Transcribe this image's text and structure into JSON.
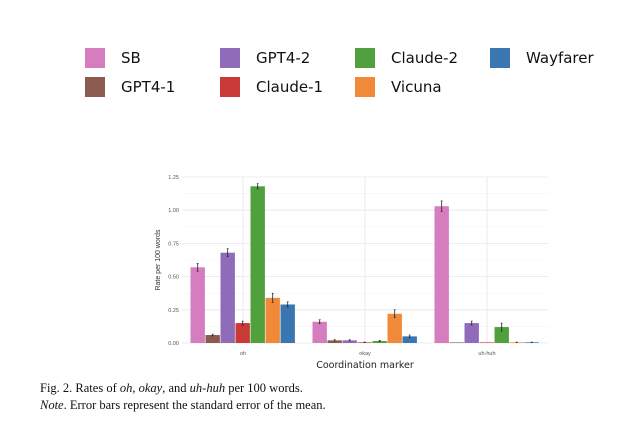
{
  "chart_data": {
    "type": "bar",
    "title": "",
    "xlabel": "Coordination marker",
    "ylabel": "Rate per 100 words",
    "ylim": [
      0,
      1.25
    ],
    "yticks": [
      "0.00",
      "0.25",
      "0.50",
      "0.75",
      "1.00",
      "1.25"
    ],
    "grid": true,
    "legend_position": "top",
    "categories": [
      "oh",
      "okay",
      "uh-huh"
    ],
    "series": [
      {
        "name": "SB",
        "color": "#d57dbe",
        "values": [
          0.57,
          0.16,
          1.03
        ],
        "errors": [
          0.03,
          0.015,
          0.04
        ]
      },
      {
        "name": "GPT4-1",
        "color": "#8c5b4f",
        "values": [
          0.06,
          0.02,
          0.0
        ],
        "errors": [
          0.007,
          0.005,
          0.0
        ]
      },
      {
        "name": "GPT4-2",
        "color": "#8f6bb9",
        "values": [
          0.68,
          0.02,
          0.15
        ],
        "errors": [
          0.03,
          0.005,
          0.015
        ]
      },
      {
        "name": "Claude-1",
        "color": "#c93a36",
        "values": [
          0.15,
          0.005,
          0.0
        ],
        "errors": [
          0.015,
          0.002,
          0.0
        ]
      },
      {
        "name": "Claude-2",
        "color": "#50a03e",
        "values": [
          1.18,
          0.015,
          0.12
        ],
        "errors": [
          0.02,
          0.005,
          0.03
        ]
      },
      {
        "name": "Vicuna",
        "color": "#f08a3a",
        "values": [
          0.34,
          0.22,
          0.005
        ],
        "errors": [
          0.035,
          0.03,
          0.002
        ]
      },
      {
        "name": "Wayfarer",
        "color": "#3a76b0",
        "values": [
          0.29,
          0.05,
          0.005
        ],
        "errors": [
          0.02,
          0.01,
          0.002
        ]
      }
    ]
  },
  "caption": {
    "line1_prefix": "Fig. 2. Rates of ",
    "line1_oh": "oh",
    "line1_sep1": ", ",
    "line1_okay": "okay",
    "line1_sep2": ", and ",
    "line1_uhhuh": "uh-huh",
    "line1_suffix": " per 100 words.",
    "line2_note": "Note",
    "line2_rest": ". Error bars represent the standard error of the mean."
  }
}
